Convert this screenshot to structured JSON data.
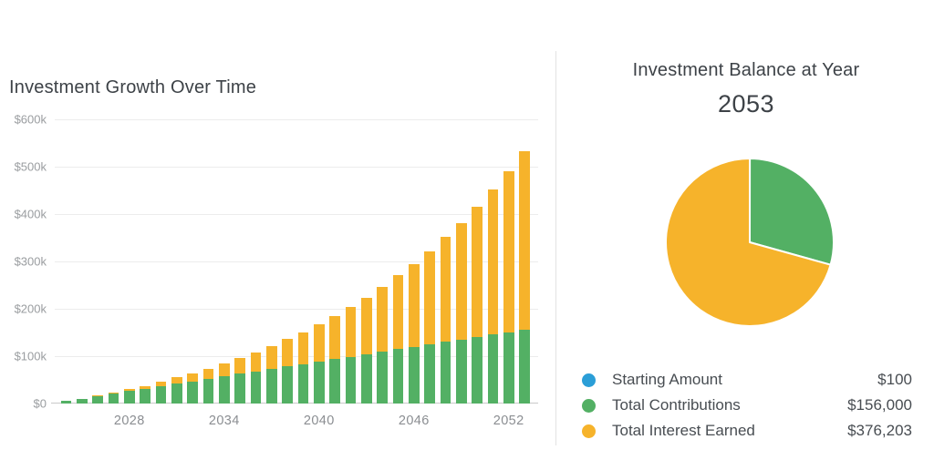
{
  "chart_data": [
    {
      "type": "bar",
      "stacked": true,
      "title": "Investment Growth Over Time",
      "categories": [
        2024,
        2025,
        2026,
        2027,
        2028,
        2029,
        2030,
        2031,
        2032,
        2033,
        2034,
        2035,
        2036,
        2037,
        2038,
        2039,
        2040,
        2041,
        2042,
        2043,
        2044,
        2045,
        2046,
        2047,
        2048,
        2049,
        2050,
        2051,
        2052,
        2053
      ],
      "series": [
        {
          "name": "Total Contributions",
          "color": "#53b064",
          "values": [
            5300,
            10500,
            15700,
            20900,
            26100,
            31300,
            36500,
            41700,
            46900,
            52100,
            57300,
            62500,
            67700,
            72900,
            78100,
            83300,
            88500,
            93700,
            98900,
            104100,
            109300,
            114500,
            119700,
            124900,
            130100,
            135300,
            140500,
            145700,
            150900,
            156100
          ]
        },
        {
          "name": "Total Interest Earned",
          "color": "#f6b32b",
          "values": [
            7,
            402,
            1213,
            2472,
            4211,
            6466,
            9276,
            12681,
            16727,
            21461,
            26934,
            33201,
            40321,
            48358,
            57380,
            67460,
            78676,
            91114,
            104864,
            120024,
            136699,
            155001,
            175052,
            196982,
            220930,
            247046,
            275493,
            306447,
            340086,
            376203
          ]
        }
      ],
      "ylim": [
        0,
        600000
      ],
      "y_tick_labels": [
        "$0",
        "$100k",
        "$200k",
        "$300k",
        "$400k",
        "$500k",
        "$600k"
      ],
      "x_tick_labels": [
        "2028",
        "2034",
        "2040",
        "2046",
        "2052"
      ],
      "x_tick_indices": [
        4,
        10,
        16,
        22,
        28
      ],
      "grid": true,
      "legend_position": "none"
    },
    {
      "type": "pie",
      "title": "Investment Balance at Year",
      "subtitle": "2053",
      "start_angle_deg": 0,
      "direction": "clockwise",
      "legend_position": "bottom",
      "slices": [
        {
          "label": "Starting Amount",
          "value": 100,
          "display": "$100",
          "color": "#2b9ed7"
        },
        {
          "label": "Total Contributions",
          "value": 156000,
          "display": "$156,000",
          "color": "#53b064"
        },
        {
          "label": "Total Interest Earned",
          "value": 376203,
          "display": "$376,203",
          "color": "#f6b32b"
        }
      ]
    }
  ],
  "colors": {
    "green": "#53b064",
    "yellow": "#f6b32b",
    "blue": "#2b9ed7",
    "gridline": "#ececec",
    "axis_baseline": "#c9c9c9",
    "title_text": "#3d4247",
    "axis_label_text": "#9a9da0",
    "legend_text": "#484d52"
  }
}
